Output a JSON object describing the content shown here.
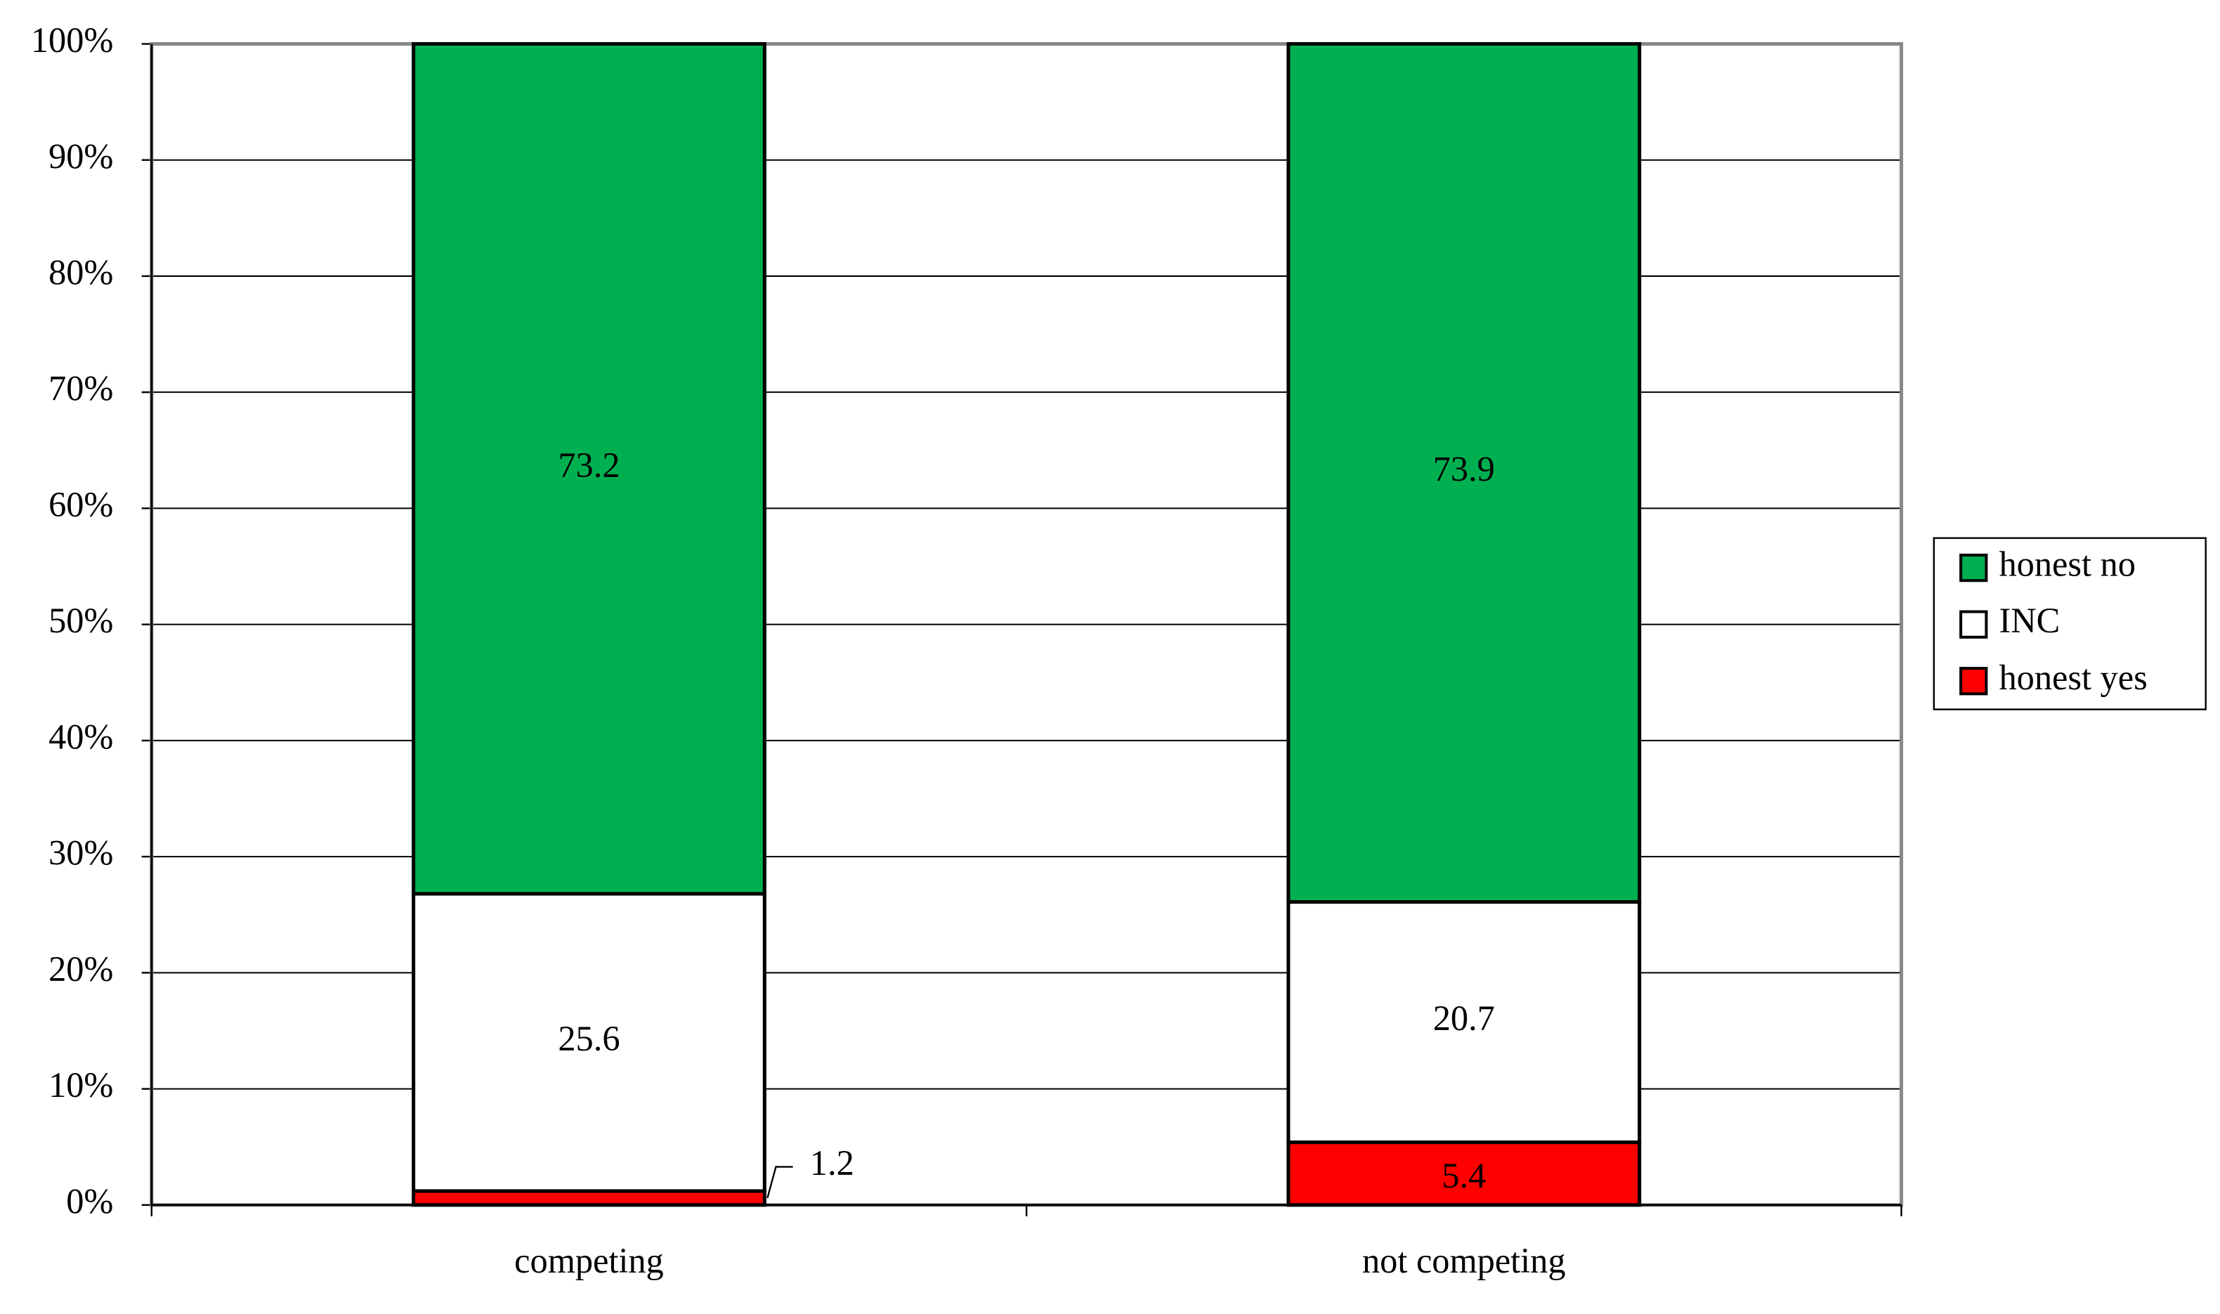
{
  "chart_data": {
    "type": "stacked_bar",
    "categories": [
      "competing",
      "not competing"
    ],
    "series": [
      {
        "name": "honest yes",
        "color": "#ff0000",
        "values": [
          1.2,
          5.4
        ]
      },
      {
        "name": "INC",
        "color": "#ffffff",
        "values": [
          25.6,
          20.7
        ]
      },
      {
        "name": "honest no",
        "color": "#00b050",
        "values": [
          73.2,
          73.9
        ]
      }
    ],
    "ylim": [
      0,
      100
    ],
    "yticks": [
      {
        "value": 0,
        "label": "0%"
      },
      {
        "value": 10,
        "label": "10%"
      },
      {
        "value": 20,
        "label": "20%"
      },
      {
        "value": 30,
        "label": "30%"
      },
      {
        "value": 40,
        "label": "40%"
      },
      {
        "value": 50,
        "label": "50%"
      },
      {
        "value": 60,
        "label": "60%"
      },
      {
        "value": 70,
        "label": "70%"
      },
      {
        "value": 80,
        "label": "80%"
      },
      {
        "value": 90,
        "label": "90%"
      },
      {
        "value": 100,
        "label": "100%"
      }
    ],
    "grid": true,
    "legend": "right"
  }
}
